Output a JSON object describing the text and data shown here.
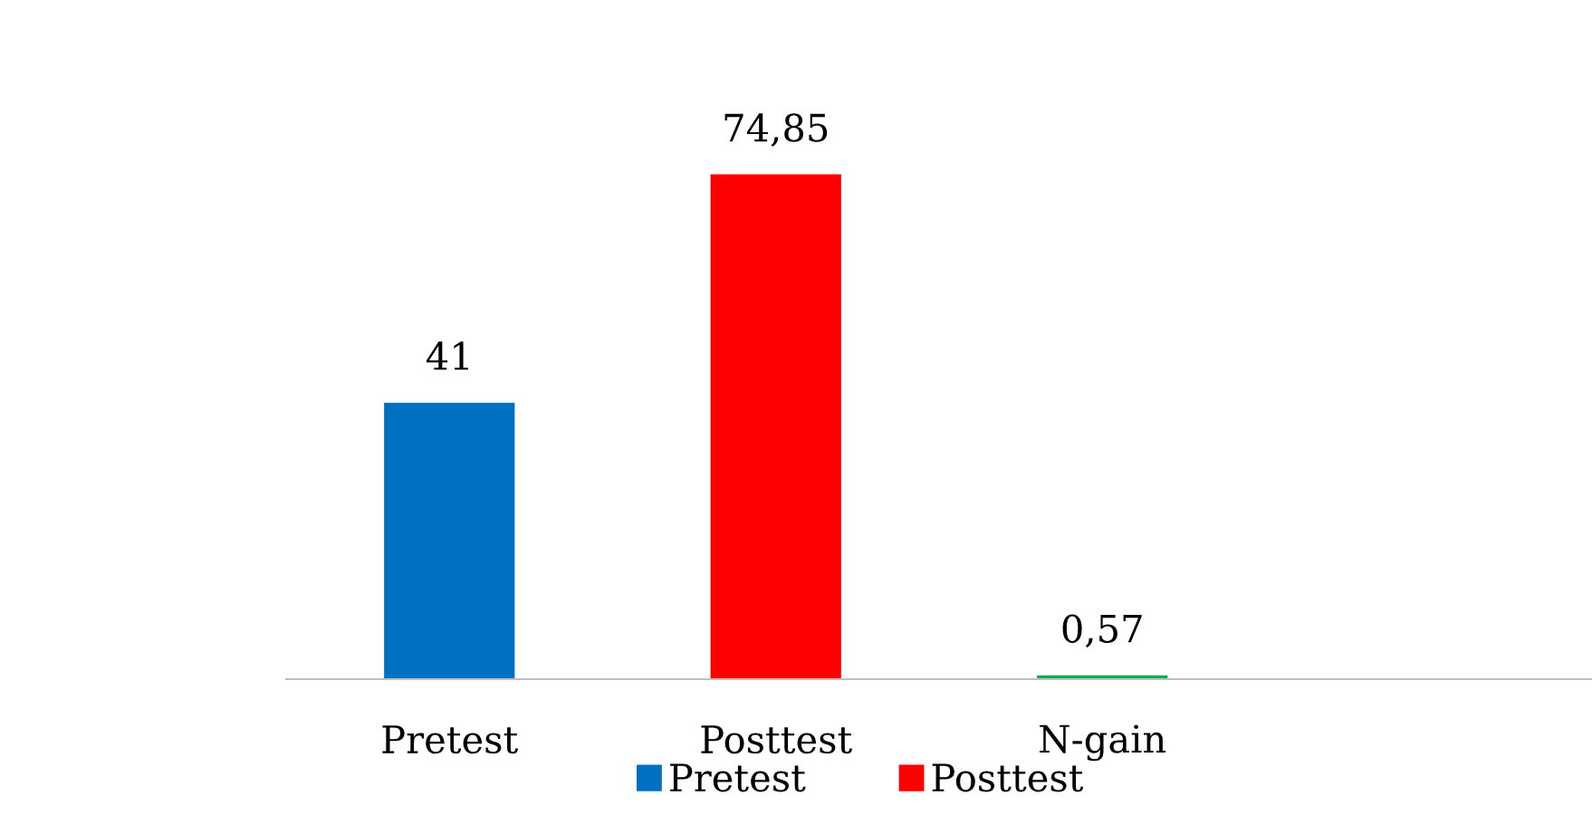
{
  "chart_data": {
    "type": "bar",
    "categories": [
      "Pretest",
      "Posttest",
      "N-gain",
      null
    ],
    "series": [
      {
        "name": "Pretest",
        "color": "#0070c0",
        "values": [
          41,
          null,
          null,
          null
        ],
        "value_labels": [
          "41",
          null,
          null,
          null
        ]
      },
      {
        "name": "Posttest",
        "color": "#ff0000",
        "values": [
          null,
          74.85,
          null,
          null
        ],
        "value_labels": [
          null,
          "74,85",
          null,
          null
        ]
      },
      {
        "color": "#00b050",
        "values": [
          null,
          null,
          0.57,
          null
        ],
        "value_labels": [
          null,
          null,
          "0,57",
          null
        ]
      }
    ],
    "legend": "bottom",
    "grid": false
  }
}
